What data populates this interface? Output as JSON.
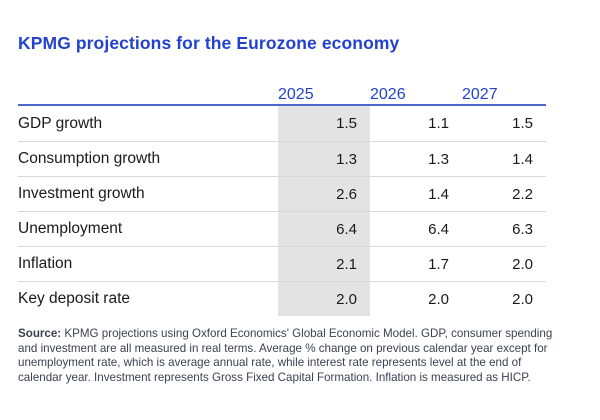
{
  "chart_data": {
    "type": "table",
    "title": "KPMG projections for the Eurozone economy",
    "year_columns": [
      "2025",
      "2026",
      "2027"
    ],
    "highlighted_column": "2025",
    "rows": [
      {
        "label": "GDP growth",
        "values": [
          "1.5",
          "1.1",
          "1.5"
        ]
      },
      {
        "label": "Consumption growth",
        "values": [
          "1.3",
          "1.3",
          "1.4"
        ]
      },
      {
        "label": "Investment growth",
        "values": [
          "2.6",
          "1.4",
          "2.2"
        ]
      },
      {
        "label": "Unemployment",
        "values": [
          "6.4",
          "6.4",
          "6.3"
        ]
      },
      {
        "label": "Inflation",
        "values": [
          "2.1",
          "1.7",
          "2.0"
        ]
      },
      {
        "label": "Key deposit rate",
        "values": [
          "2.0",
          "2.0",
          "2.0"
        ]
      }
    ]
  },
  "footnote": {
    "source_label": "Source:",
    "text": "KPMG projections using Oxford Economics' Global Economic Model. GDP, consumer spending and investment are all measured in real terms. Average % change on previous calendar year except for unemployment rate, which is average annual rate, while interest rate represents level at the end of calendar year. Investment represents Gross Fixed Capital Formation. Inflation is measured as HICP."
  },
  "colors": {
    "accent_blue": "#2342cb",
    "rule_blue": "#4c68c8",
    "highlight_gray": "#e3e3e3",
    "row_divider": "#d9d9d9",
    "body_text": "#1a1a1a",
    "footnote_text": "#3a4250"
  }
}
